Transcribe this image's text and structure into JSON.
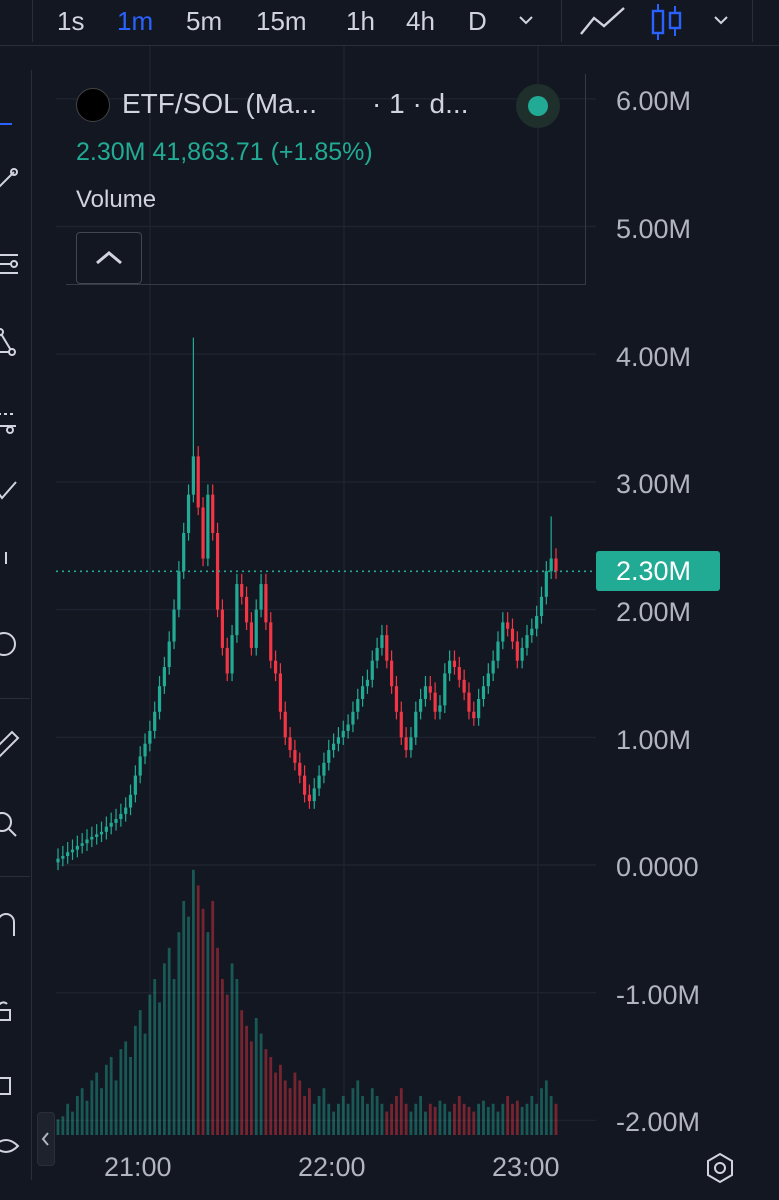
{
  "timeframes": {
    "items": [
      {
        "label": "1s",
        "active": false
      },
      {
        "label": "1m",
        "active": true
      },
      {
        "label": "5m",
        "active": false
      },
      {
        "label": "15m",
        "active": false
      },
      {
        "label": "1h",
        "active": false
      },
      {
        "label": "4h",
        "active": false
      },
      {
        "label": "D",
        "active": false
      }
    ]
  },
  "toolbar_icons": [
    "chevron-down-icon",
    "line-chart-icon",
    "candles-icon",
    "chevron-down-icon"
  ],
  "legend": {
    "symbol": "ETF/SOL (Ma...",
    "interval": "· 1 · d...",
    "ohlc": "2.30M  41,863.71 (+1.85%)",
    "volume_label": "Volume"
  },
  "price_axis": {
    "ticks": [
      "6.00M",
      "5.00M",
      "4.00M",
      "3.00M",
      "2.00M",
      "1.00M",
      "0.0000",
      "-1.00M",
      "-2.00M"
    ],
    "current_price_label": "2.30M"
  },
  "time_axis": {
    "ticks": [
      "21:00",
      "22:00",
      "23:00"
    ]
  },
  "colors": {
    "background": "#131722",
    "up": "#22ab94",
    "down": "#f23645",
    "grid": "#1f2330",
    "active_timeframe": "#2962ff"
  },
  "chart_data": {
    "type": "candlestick",
    "interval": "1m",
    "x": [
      "20:50",
      "23:07"
    ],
    "x_ticks": [
      "21:00",
      "22:00",
      "23:00"
    ],
    "y_ticks": [
      "6.00M",
      "5.00M",
      "4.00M",
      "3.00M",
      "2.00M",
      "1.00M",
      "0.0000",
      "-1.00M",
      "-2.00M"
    ],
    "ylim": [
      -2000000,
      6200000
    ],
    "last_price": 2300000,
    "change": "+1.85%",
    "close_series": [
      0.05,
      0.07,
      0.1,
      0.12,
      0.15,
      0.17,
      0.2,
      0.22,
      0.24,
      0.26,
      0.3,
      0.33,
      0.36,
      0.4,
      0.45,
      0.55,
      0.7,
      0.85,
      0.95,
      1.05,
      1.2,
      1.4,
      1.55,
      1.75,
      2.0,
      2.3,
      2.6,
      2.9,
      3.2,
      2.8,
      2.4,
      2.9,
      2.6,
      2.0,
      1.7,
      1.5,
      1.8,
      2.2,
      2.1,
      1.9,
      1.7,
      2.0,
      2.2,
      1.9,
      1.6,
      1.5,
      1.2,
      1.0,
      0.9,
      0.8,
      0.7,
      0.55,
      0.5,
      0.6,
      0.7,
      0.8,
      0.9,
      0.95,
      1.0,
      1.05,
      1.1,
      1.2,
      1.3,
      1.4,
      1.45,
      1.6,
      1.7,
      1.8,
      1.6,
      1.4,
      1.2,
      1.0,
      0.9,
      1.0,
      1.2,
      1.3,
      1.4,
      1.35,
      1.2,
      1.25,
      1.5,
      1.6,
      1.55,
      1.45,
      1.35,
      1.2,
      1.15,
      1.3,
      1.4,
      1.5,
      1.6,
      1.75,
      1.9,
      1.85,
      1.75,
      1.6,
      1.7,
      1.8,
      1.85,
      1.95,
      2.1,
      2.3,
      2.4,
      2.3
    ],
    "volume_series": [
      0.1,
      0.12,
      0.2,
      0.15,
      0.25,
      0.3,
      0.22,
      0.35,
      0.4,
      0.3,
      0.45,
      0.5,
      0.35,
      0.55,
      0.6,
      0.5,
      0.7,
      0.8,
      0.65,
      0.9,
      1.0,
      0.85,
      1.1,
      1.2,
      1.0,
      1.3,
      1.5,
      1.4,
      1.7,
      1.6,
      1.45,
      1.3,
      1.5,
      1.2,
      1.0,
      0.9,
      1.1,
      1.0,
      0.8,
      0.7,
      0.6,
      0.75,
      0.65,
      0.55,
      0.5,
      0.4,
      0.45,
      0.35,
      0.3,
      0.4,
      0.35,
      0.25,
      0.3,
      0.2,
      0.25,
      0.3,
      0.2,
      0.15,
      0.2,
      0.25,
      0.2,
      0.3,
      0.35,
      0.25,
      0.2,
      0.3,
      0.25,
      0.2,
      0.15,
      0.2,
      0.25,
      0.3,
      0.2,
      0.15,
      0.2,
      0.25,
      0.15,
      0.2,
      0.18,
      0.22,
      0.2,
      0.15,
      0.2,
      0.25,
      0.2,
      0.18,
      0.15,
      0.2,
      0.22,
      0.18,
      0.2,
      0.15,
      0.2,
      0.25,
      0.2,
      0.22,
      0.18,
      0.2,
      0.25,
      0.2,
      0.3,
      0.35,
      0.25,
      0.2
    ],
    "grid": true
  }
}
